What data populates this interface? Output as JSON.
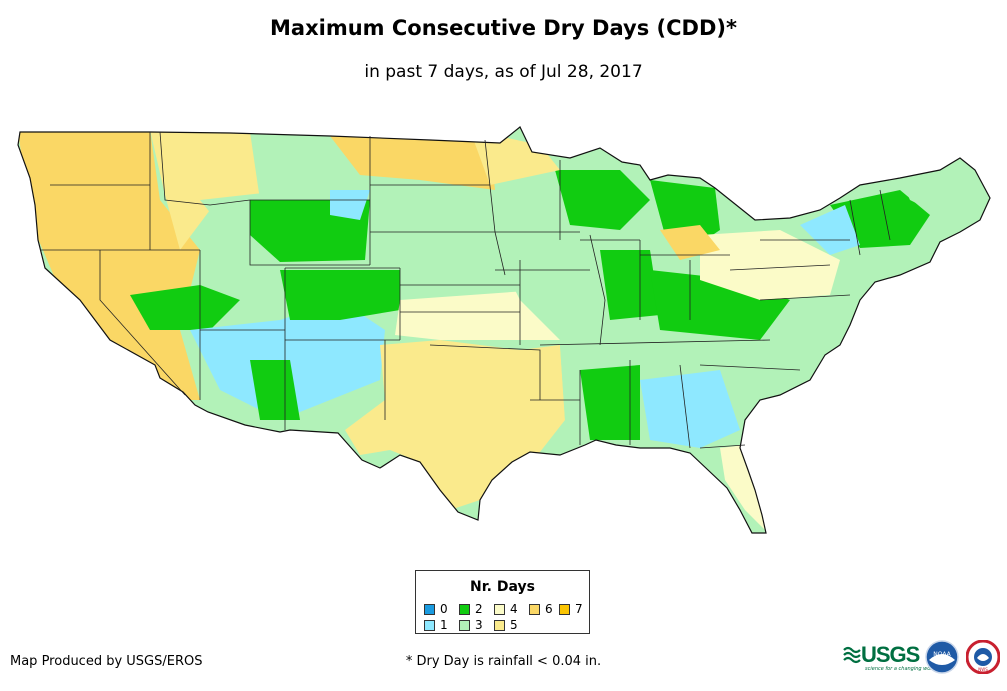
{
  "title": "Maximum Consecutive Dry Days (CDD)*",
  "subtitle": "in past 7 days, as of Jul 28, 2017",
  "legend": {
    "title": "Nr. Days",
    "items": [
      {
        "label": "0",
        "color": "#1a9be0"
      },
      {
        "label": "1",
        "color": "#8ee8ff"
      },
      {
        "label": "2",
        "color": "#11cc11"
      },
      {
        "label": "3",
        "color": "#b2f2b8"
      },
      {
        "label": "4",
        "color": "#fbfbc8"
      },
      {
        "label": "5",
        "color": "#faea8c"
      },
      {
        "label": "6",
        "color": "#fad765"
      },
      {
        "label": "7",
        "color": "#fbc502"
      }
    ]
  },
  "credit": "Map Produced by USGS/EROS",
  "footnote": "* Dry Day is rainfall < 0.04 in.",
  "logos": {
    "usgs": "USGS",
    "usgs_tagline": "science for a changing world",
    "noaa": "NOAA",
    "nws": "NWS"
  }
}
